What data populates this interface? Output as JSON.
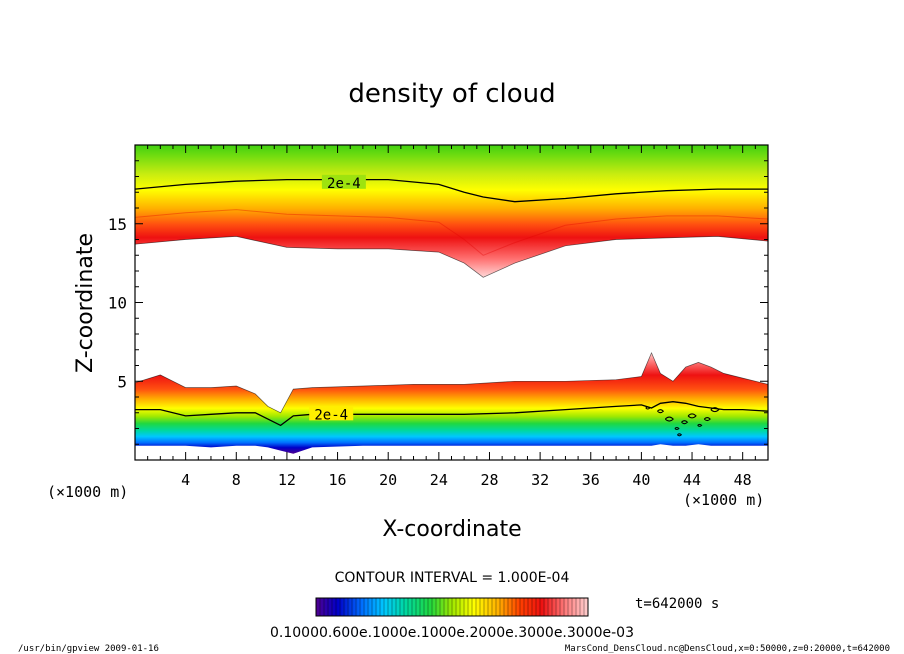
{
  "chart_data": {
    "type": "heatmap",
    "title": "density of cloud",
    "xlabel": "X-coordinate",
    "ylabel": "Z-coordinate",
    "x_unit_left": "(×1000 m)",
    "x_unit_right": "(×1000 m)",
    "xlim": [
      0,
      50
    ],
    "ylim": [
      0,
      20
    ],
    "xticks": [
      4,
      8,
      12,
      16,
      20,
      24,
      28,
      32,
      36,
      40,
      44,
      48
    ],
    "yticks": [
      5,
      10,
      15
    ],
    "contour_labels": [
      {
        "text": "2e-4",
        "x": 16.5,
        "z": 17.6
      },
      {
        "text": "2e-4",
        "x": 15.5,
        "z": 2.9
      }
    ],
    "upper_layer": {
      "x": [
        0,
        4,
        8,
        12,
        16,
        20,
        24,
        26,
        27.5,
        30,
        34,
        38,
        42,
        46,
        50
      ],
      "bottom": [
        13.7,
        14.0,
        14.2,
        13.5,
        13.4,
        13.4,
        13.2,
        12.5,
        11.6,
        12.5,
        13.6,
        14.0,
        14.1,
        14.2,
        13.9
      ],
      "peak": [
        15.4,
        15.7,
        15.9,
        15.6,
        15.5,
        15.4,
        15.1,
        14.0,
        13.0,
        13.8,
        14.9,
        15.3,
        15.5,
        15.5,
        15.3
      ],
      "contour_2e4": [
        17.2,
        17.5,
        17.7,
        17.8,
        17.8,
        17.8,
        17.5,
        17.0,
        16.7,
        16.4,
        16.6,
        16.9,
        17.1,
        17.2,
        17.2
      ]
    },
    "lower_layer": {
      "x": [
        0,
        2,
        4,
        6,
        8,
        9.5,
        10.5,
        11.5,
        12.5,
        14,
        18,
        22,
        26,
        30,
        34,
        38,
        40,
        40.8,
        41.5,
        42.5,
        43.5,
        44.5,
        45.5,
        46.5,
        48,
        50
      ],
      "top": [
        4.9,
        5.4,
        4.6,
        4.6,
        4.7,
        4.2,
        3.4,
        3.0,
        4.5,
        4.6,
        4.7,
        4.8,
        4.8,
        5.0,
        5.0,
        5.1,
        5.3,
        6.8,
        5.5,
        5.0,
        5.9,
        6.2,
        5.9,
        5.5,
        5.2,
        4.8
      ],
      "contour_2e4": [
        3.2,
        3.2,
        2.8,
        2.9,
        3.0,
        3.0,
        2.6,
        2.2,
        2.8,
        2.9,
        2.9,
        2.9,
        2.9,
        3.0,
        3.2,
        3.4,
        3.5,
        3.3,
        3.6,
        3.7,
        3.6,
        3.4,
        3.3,
        3.2,
        3.2,
        3.1
      ],
      "base": [
        0.9,
        0.9,
        0.9,
        0.8,
        0.9,
        0.9,
        0.8,
        0.6,
        0.4,
        0.8,
        0.9,
        0.9,
        0.9,
        0.9,
        0.9,
        0.9,
        0.9,
        0.9,
        1.0,
        0.9,
        0.9,
        1.0,
        0.9,
        0.9,
        0.9,
        0.9
      ]
    },
    "colors": {
      "sequence": [
        "#500090",
        "#0000c8",
        "#0070ff",
        "#00c8ff",
        "#00d8a0",
        "#20d840",
        "#a0e800",
        "#ffff00",
        "#ffb000",
        "#ff4000",
        "#ee1111",
        "#ff8080",
        "#ffd0d0"
      ],
      "top_background": "#40d010"
    },
    "contour_interval_label": "CONTOUR INTERVAL = 1.000E-04",
    "time_label": "t=642000 s",
    "colorbar_labels": "0.10000.600e.1000e.1000e.2000e.3000e.3000e-03",
    "footer_left": "/usr/bin/gpview   2009-01-16",
    "footer_right": "MarsCond_DensCloud.nc@DensCloud,x=0:50000,z=0:20000,t=642000"
  }
}
